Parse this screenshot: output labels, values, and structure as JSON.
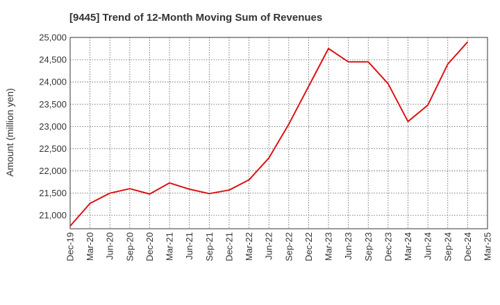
{
  "chart_data": {
    "type": "line",
    "title": "[9445]  Trend of 12-Month Moving Sum of Revenues",
    "ylabel": "Amount (million yen)",
    "xlabel": "",
    "ylim": [
      20700,
      25000
    ],
    "yticks": [
      21000,
      21500,
      22000,
      22500,
      23000,
      23500,
      24000,
      24500,
      25000
    ],
    "ytick_labels": [
      "21,000",
      "21,500",
      "22,000",
      "22,500",
      "23,000",
      "23,500",
      "24,000",
      "24,500",
      "25,000"
    ],
    "categories": [
      "Dec-19",
      "Mar-20",
      "Jun-20",
      "Sep-20",
      "Dec-20",
      "Mar-21",
      "Jun-21",
      "Sep-21",
      "Dec-21",
      "Mar-22",
      "Jun-22",
      "Sep-22",
      "Dec-22",
      "Mar-23",
      "Jun-23",
      "Sep-23",
      "Dec-23",
      "Mar-24",
      "Jun-24",
      "Sep-24",
      "Dec-24",
      "Mar-25"
    ],
    "series": [
      {
        "color": "#dd1111",
        "values": [
          20760,
          21270,
          21500,
          21600,
          21480,
          21730,
          21590,
          21490,
          21570,
          21800,
          22290,
          23050,
          23900,
          24750,
          24450,
          24450,
          23960,
          23110,
          23480,
          24400,
          24900,
          null
        ]
      }
    ],
    "grid": true,
    "grid_style": "dotted"
  }
}
